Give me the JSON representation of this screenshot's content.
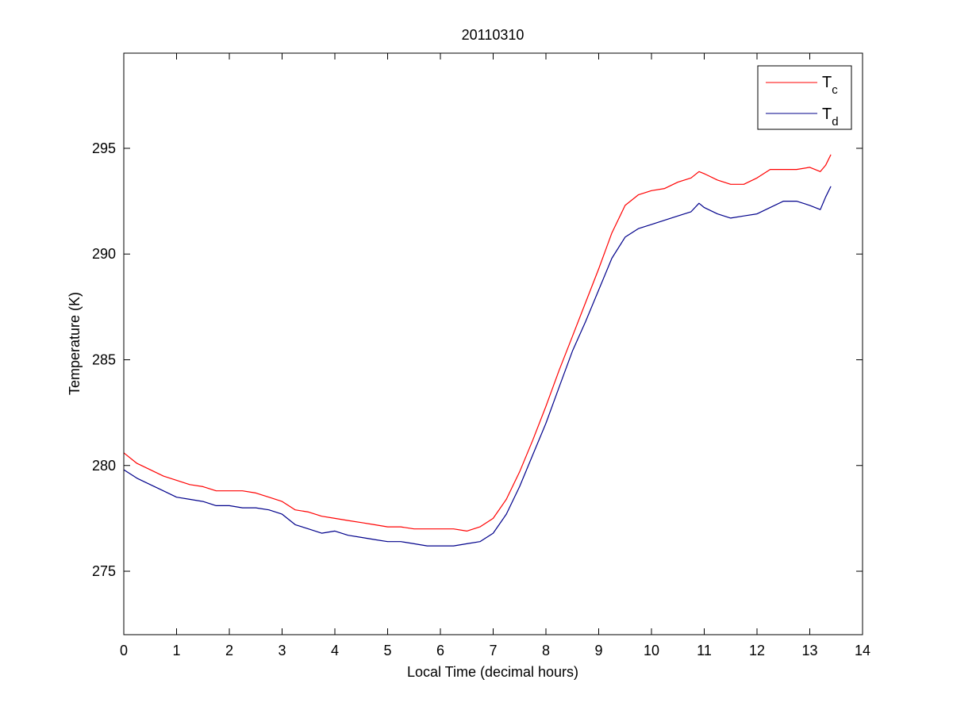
{
  "chart_data": {
    "type": "line",
    "title": "20110310",
    "xlabel": "Local Time (decimal hours)",
    "ylabel": "Temperature (K)",
    "xlim": [
      0,
      14
    ],
    "ylim": [
      272,
      299.5
    ],
    "xticks": [
      0,
      1,
      2,
      3,
      4,
      5,
      6,
      7,
      8,
      9,
      10,
      11,
      12,
      13,
      14
    ],
    "yticks": [
      275,
      280,
      285,
      290,
      295
    ],
    "grid": false,
    "legend_position": "top-right",
    "series": [
      {
        "name": "T",
        "name_subscript": "c",
        "color": "#ff0000",
        "x": [
          0,
          0.25,
          0.5,
          0.75,
          1.0,
          1.25,
          1.5,
          1.75,
          2.0,
          2.25,
          2.5,
          2.75,
          3.0,
          3.25,
          3.5,
          3.75,
          4.0,
          4.25,
          4.5,
          4.75,
          5.0,
          5.25,
          5.5,
          5.75,
          6.0,
          6.25,
          6.5,
          6.75,
          7.0,
          7.25,
          7.5,
          7.75,
          8.0,
          8.25,
          8.5,
          8.75,
          9.0,
          9.25,
          9.5,
          9.75,
          10.0,
          10.25,
          10.5,
          10.75,
          10.9,
          11.0,
          11.25,
          11.5,
          11.75,
          12.0,
          12.25,
          12.5,
          12.75,
          13.0,
          13.2,
          13.3,
          13.4
        ],
        "y": [
          280.6,
          280.1,
          279.8,
          279.5,
          279.3,
          279.1,
          279.0,
          278.8,
          278.8,
          278.8,
          278.7,
          278.5,
          278.3,
          277.9,
          277.8,
          277.6,
          277.5,
          277.4,
          277.3,
          277.2,
          277.1,
          277.1,
          277.0,
          277.0,
          277.0,
          277.0,
          276.9,
          277.1,
          277.5,
          278.4,
          279.7,
          281.2,
          282.8,
          284.5,
          286.1,
          287.7,
          289.3,
          291.0,
          292.3,
          292.8,
          293.0,
          293.1,
          293.4,
          293.6,
          293.9,
          293.8,
          293.5,
          293.3,
          293.3,
          293.6,
          294.0,
          294.0,
          294.0,
          294.1,
          293.9,
          294.2,
          294.7
        ]
      },
      {
        "name": "T",
        "name_subscript": "d",
        "color": "#00008b",
        "x": [
          0,
          0.25,
          0.5,
          0.75,
          1.0,
          1.25,
          1.5,
          1.75,
          2.0,
          2.25,
          2.5,
          2.75,
          3.0,
          3.25,
          3.5,
          3.75,
          4.0,
          4.25,
          4.5,
          4.75,
          5.0,
          5.25,
          5.5,
          5.75,
          6.0,
          6.25,
          6.5,
          6.75,
          7.0,
          7.25,
          7.5,
          7.75,
          8.0,
          8.25,
          8.5,
          8.75,
          9.0,
          9.25,
          9.5,
          9.75,
          10.0,
          10.25,
          10.5,
          10.75,
          10.9,
          11.0,
          11.25,
          11.5,
          11.75,
          12.0,
          12.25,
          12.5,
          12.75,
          13.0,
          13.2,
          13.3,
          13.4
        ],
        "y": [
          279.8,
          279.4,
          279.1,
          278.8,
          278.5,
          278.4,
          278.3,
          278.1,
          278.1,
          278.0,
          278.0,
          277.9,
          277.7,
          277.2,
          277.0,
          276.8,
          276.9,
          276.7,
          276.6,
          276.5,
          276.4,
          276.4,
          276.3,
          276.2,
          276.2,
          276.2,
          276.3,
          276.4,
          276.8,
          277.7,
          279.0,
          280.5,
          282.0,
          283.7,
          285.4,
          286.8,
          288.3,
          289.8,
          290.8,
          291.2,
          291.4,
          291.6,
          291.8,
          292.0,
          292.4,
          292.2,
          291.9,
          291.7,
          291.8,
          291.9,
          292.2,
          292.5,
          292.5,
          292.3,
          292.1,
          292.7,
          293.2
        ]
      }
    ]
  }
}
